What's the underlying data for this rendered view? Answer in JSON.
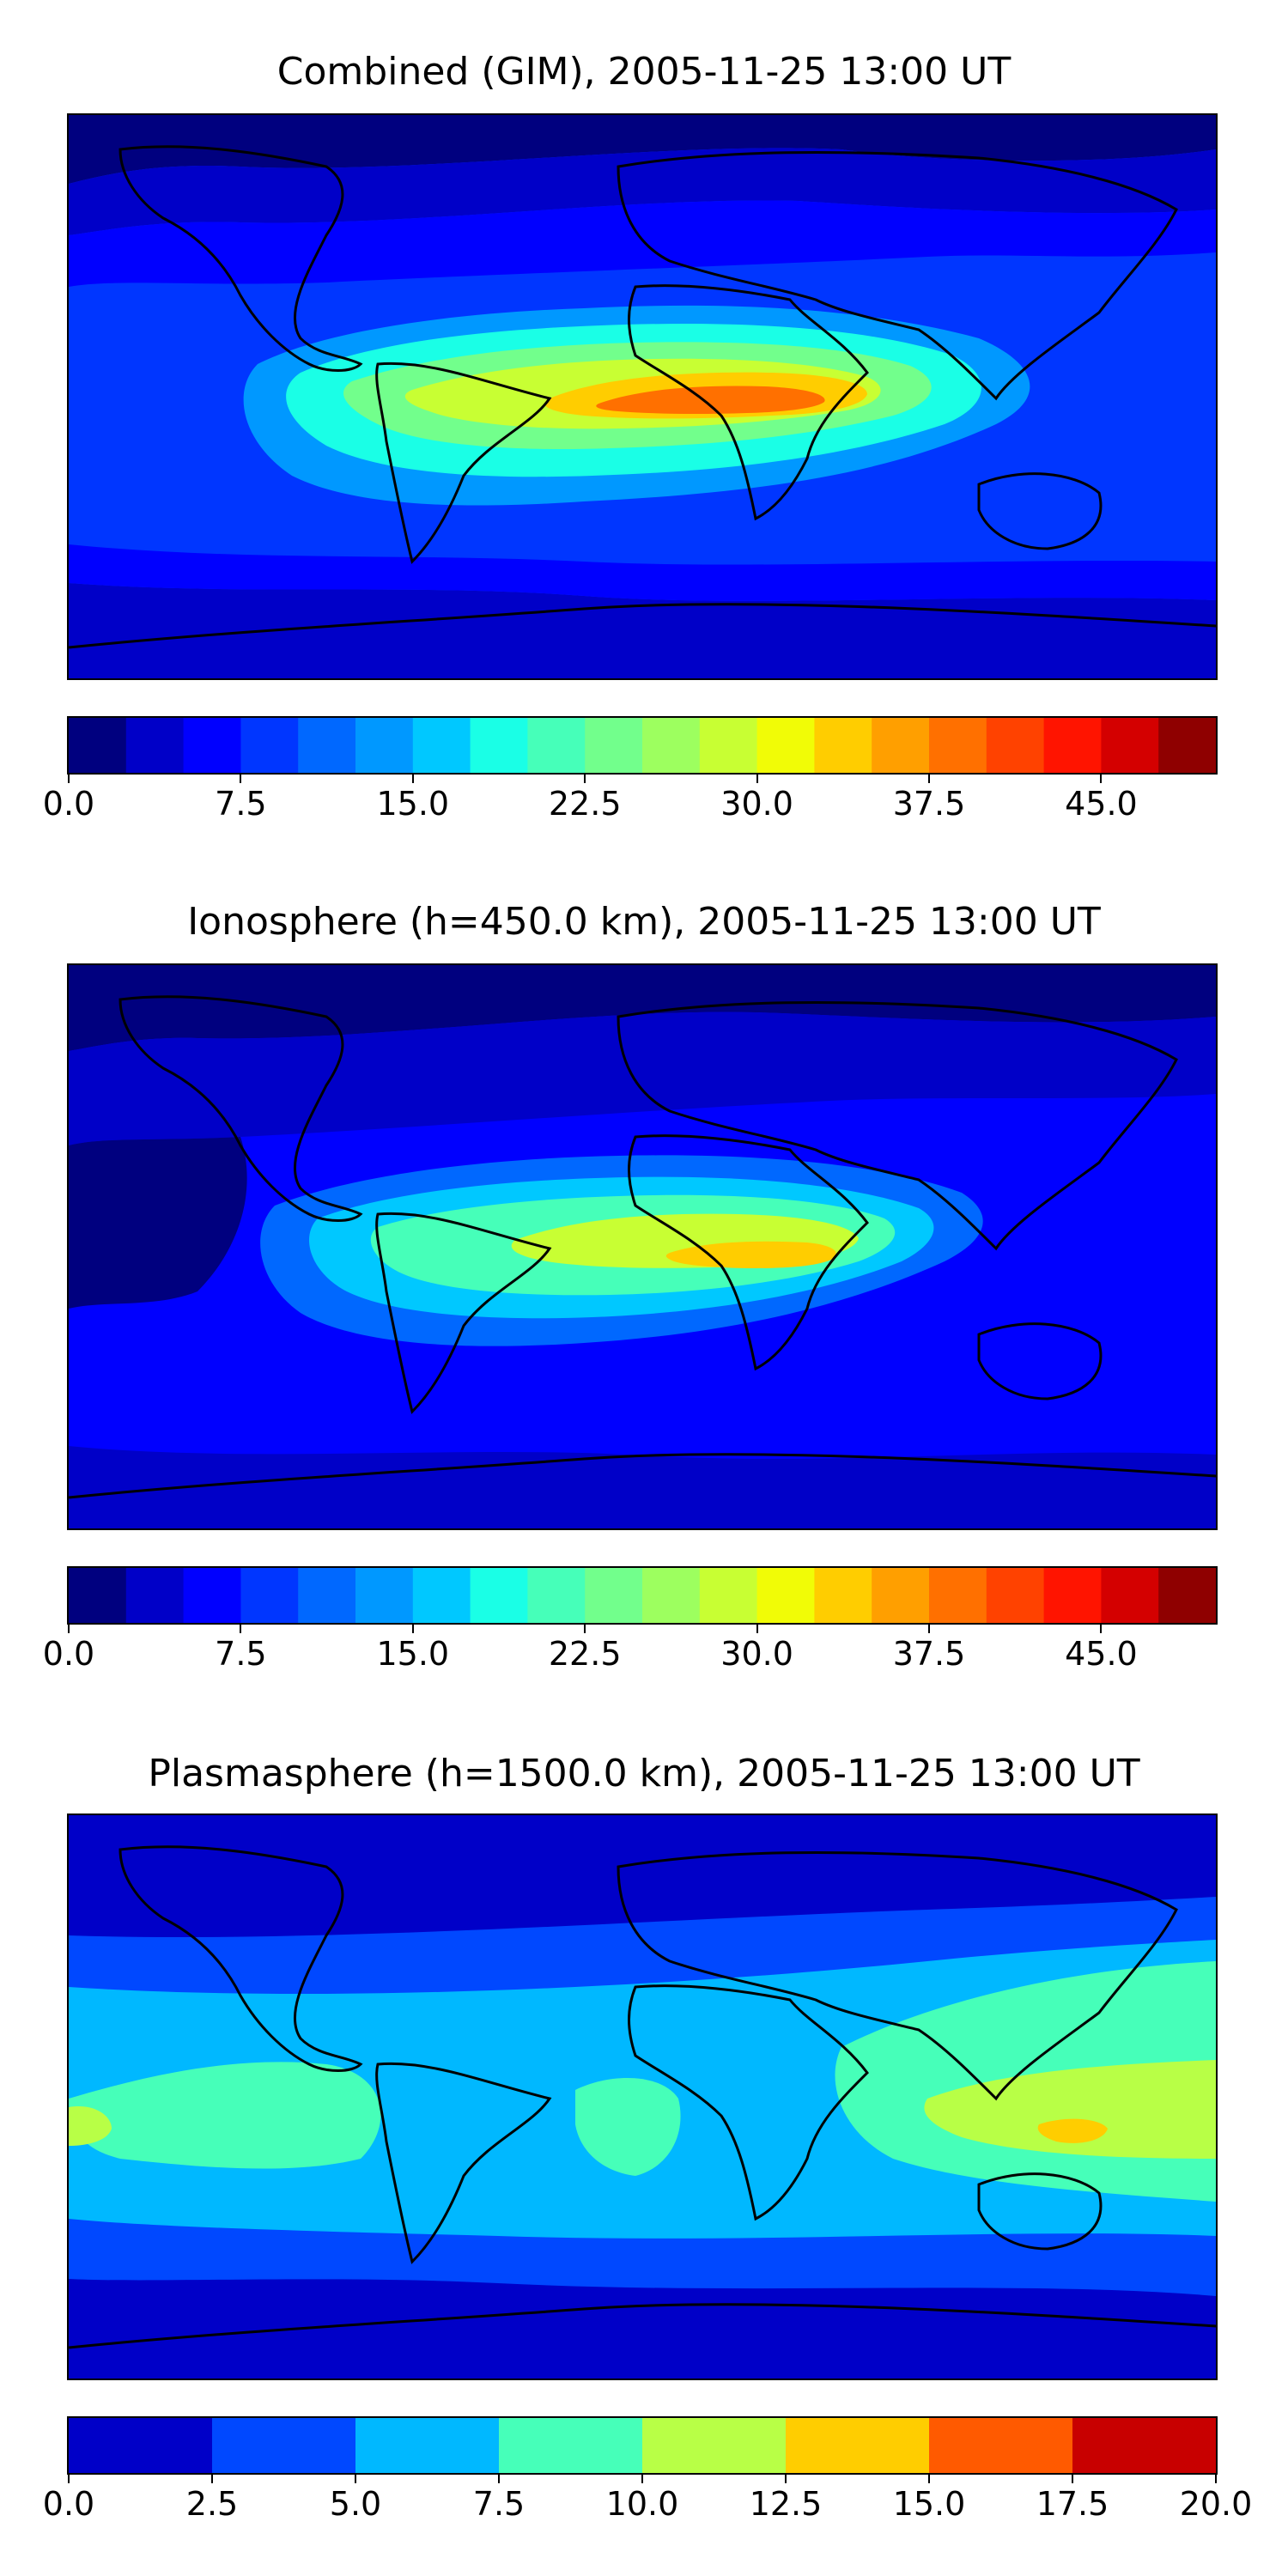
{
  "chart_data": [
    {
      "type": "heatmap",
      "title": "Combined (GIM), 2005-11-25 13:00 UT",
      "colorbar": {
        "range": [
          0,
          50
        ],
        "levels": [
          0,
          2.5,
          5,
          7.5,
          10,
          12.5,
          15,
          17.5,
          20,
          22.5,
          25,
          27.5,
          30,
          32.5,
          35,
          37.5,
          40,
          42.5,
          45,
          47.5,
          50
        ],
        "ticks": [
          0,
          7.5,
          15,
          22.5,
          30,
          37.5,
          45
        ],
        "tick_labels": [
          "0.0",
          "7.5",
          "15.0",
          "22.5",
          "30.0",
          "37.5",
          "45.0"
        ],
        "colors": [
          "#00007f",
          "#0000c8",
          "#0000ff",
          "#0036ff",
          "#0068ff",
          "#0098ff",
          "#00c8ff",
          "#1affe6",
          "#46ffb9",
          "#72ff8c",
          "#9dff5f",
          "#c8ff33",
          "#f1fc06",
          "#ffcd00",
          "#ff9f00",
          "#ff7000",
          "#ff4200",
          "#ff1400",
          "#d40000",
          "#8f0000"
        ]
      },
      "peak_value": 40,
      "peak_region": "equatorial Africa"
    },
    {
      "type": "heatmap",
      "title": "Ionosphere  (h=450.0 km), 2005-11-25 13:00 UT",
      "colorbar": {
        "range": [
          0,
          50
        ],
        "levels": [
          0,
          2.5,
          5,
          7.5,
          10,
          12.5,
          15,
          17.5,
          20,
          22.5,
          25,
          27.5,
          30,
          32.5,
          35,
          37.5,
          40,
          42.5,
          45,
          47.5,
          50
        ],
        "ticks": [
          0,
          7.5,
          15,
          22.5,
          30,
          37.5,
          45
        ],
        "tick_labels": [
          "0.0",
          "7.5",
          "15.0",
          "22.5",
          "30.0",
          "37.5",
          "45.0"
        ],
        "colors": [
          "#00007f",
          "#0000c8",
          "#0000ff",
          "#0036ff",
          "#0068ff",
          "#0098ff",
          "#00c8ff",
          "#1affe6",
          "#46ffb9",
          "#72ff8c",
          "#9dff5f",
          "#c8ff33",
          "#f1fc06",
          "#ffcd00",
          "#ff9f00",
          "#ff7000",
          "#ff4200",
          "#ff1400",
          "#d40000",
          "#8f0000"
        ]
      },
      "peak_value": 35,
      "peak_region": "east Africa"
    },
    {
      "type": "heatmap",
      "title": "Plasmasphere (h=1500.0 km), 2005-11-25 13:00 UT",
      "colorbar": {
        "range": [
          0,
          20
        ],
        "levels": [
          0,
          2.5,
          5,
          7.5,
          10,
          12.5,
          15,
          17.5,
          20
        ],
        "ticks": [
          0,
          2.5,
          5,
          7.5,
          10,
          12.5,
          15,
          17.5,
          20
        ],
        "tick_labels": [
          "0.0",
          "2.5",
          "5.0",
          "7.5",
          "10.0",
          "12.5",
          "15.0",
          "17.5",
          "20.0"
        ],
        "colors": [
          "#0000c8",
          "#0048ff",
          "#00b8ff",
          "#46ffb9",
          "#b8ff46",
          "#ffcd00",
          "#ff5a00",
          "#c80000"
        ]
      },
      "peak_value": 12.5,
      "peak_region": "Maritime continent / northern Australia"
    }
  ]
}
